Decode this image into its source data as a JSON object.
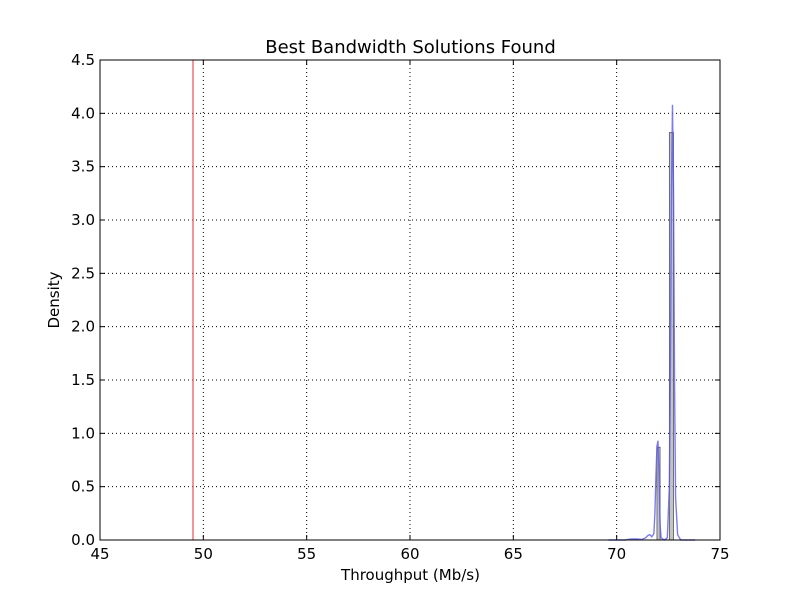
{
  "chart_data": {
    "type": "histogram",
    "title": "Best Bandwidth Solutions Found",
    "xlabel": "Throughput (Mb/s)",
    "ylabel": "Density",
    "xlim": [
      45,
      75
    ],
    "ylim": [
      0,
      4.5
    ],
    "xticks": [
      "45",
      "50",
      "55",
      "60",
      "65",
      "70",
      "75"
    ],
    "yticks": [
      "0.0",
      "0.5",
      "1.0",
      "1.5",
      "2.0",
      "2.5",
      "3.0",
      "3.5",
      "4.0",
      "4.5"
    ],
    "grid": true,
    "colors": {
      "reference_line": "#e8605a",
      "kde": "#5b5bea",
      "bars_fill": "#b5b5b5",
      "bars_edge": "#555555"
    },
    "reference_line_x": 49.5,
    "histogram_bars": [
      {
        "x0": 71.95,
        "x1": 72.1,
        "density": 0.87
      },
      {
        "x0": 72.55,
        "x1": 72.75,
        "density": 3.82
      }
    ],
    "kde_curve": [
      [
        69.6,
        0.0
      ],
      [
        70.4,
        0.0
      ],
      [
        70.7,
        0.01
      ],
      [
        71.0,
        0.01
      ],
      [
        71.2,
        0.005
      ],
      [
        71.4,
        0.02
      ],
      [
        71.5,
        0.04
      ],
      [
        71.6,
        0.05
      ],
      [
        71.7,
        0.03
      ],
      [
        71.8,
        0.06
      ],
      [
        71.85,
        0.25
      ],
      [
        71.9,
        0.6
      ],
      [
        71.95,
        0.88
      ],
      [
        72.0,
        0.93
      ],
      [
        72.05,
        0.6
      ],
      [
        72.1,
        0.15
      ],
      [
        72.15,
        0.02
      ],
      [
        72.3,
        0.0
      ],
      [
        72.45,
        0.02
      ],
      [
        72.55,
        0.5
      ],
      [
        72.6,
        1.6
      ],
      [
        72.65,
        3.2
      ],
      [
        72.7,
        4.08
      ],
      [
        72.75,
        3.3
      ],
      [
        72.8,
        1.5
      ],
      [
        72.85,
        0.4
      ],
      [
        72.95,
        0.05
      ],
      [
        73.1,
        0.0
      ],
      [
        73.8,
        0.0
      ]
    ]
  }
}
